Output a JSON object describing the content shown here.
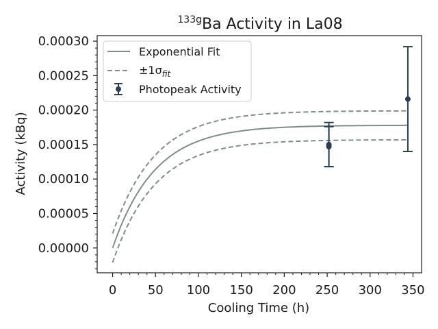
{
  "chart_data": {
    "type": "scatter",
    "title_sup": "133g",
    "title_main": "Ba Activity in La08",
    "xlabel": "Cooling Time (h)",
    "ylabel": "Activity (kBq)",
    "xlim": [
      -18,
      360
    ],
    "ylim": [
      -3.6e-05,
      0.000308
    ],
    "x_ticks": [
      0,
      50,
      100,
      150,
      200,
      250,
      300,
      350
    ],
    "x_tick_labels": [
      "0",
      "50",
      "100",
      "150",
      "200",
      "250",
      "300",
      "350"
    ],
    "y_ticks": [
      0.0,
      5e-05,
      0.0001,
      0.00015,
      0.0002,
      0.00025,
      0.0003
    ],
    "y_tick_labels": [
      "0.00000",
      "0.00005",
      "0.00010",
      "0.00015",
      "0.00020",
      "0.00025",
      "0.00030"
    ],
    "grid": false,
    "legend_position": "top-left",
    "legend": {
      "fit_label": "Exponential Fit",
      "band_label_prefix": "±1σ",
      "band_label_sub": "fit",
      "points_label": "Photopeak Activity"
    },
    "fit": {
      "model": "A * (1 - exp(-lambda * t))",
      "A": 0.000178,
      "lambda": 0.0205,
      "x_range": [
        0,
        344
      ],
      "band_offset": 2.1e-05
    },
    "series": [
      {
        "name": "Photopeak Activity",
        "points": [
          {
            "x": 252,
            "y": 0.00015,
            "yerr": 3.2e-05
          },
          {
            "x": 252,
            "y": 0.000147,
            "yerr": 2.9e-05
          },
          {
            "x": 344,
            "y": 0.000216,
            "yerr": 7.6e-05
          }
        ]
      }
    ],
    "colors": {
      "fit": "#7f8c8d",
      "points": "#2c3e50",
      "axes": "#1a1a1a"
    }
  }
}
